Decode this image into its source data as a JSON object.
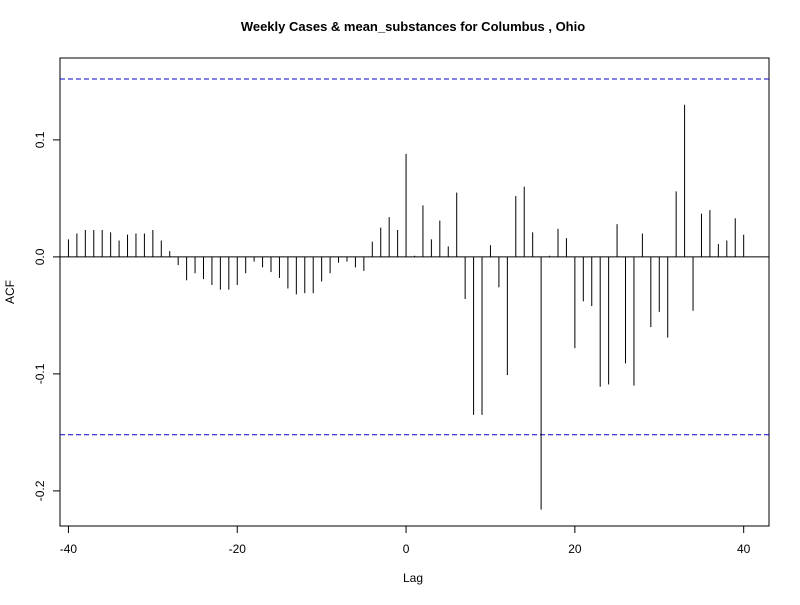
{
  "chart_data": {
    "type": "bar",
    "title": "Weekly Cases & mean_substances for Columbus , Ohio",
    "xlabel": "Lag",
    "ylabel": "ACF",
    "xlim": [
      -41,
      43
    ],
    "ylim": [
      -0.23,
      0.17
    ],
    "x_ticks": [
      {
        "value": -40,
        "label": "-40"
      },
      {
        "value": -20,
        "label": "-20"
      },
      {
        "value": 0,
        "label": "0"
      },
      {
        "value": 20,
        "label": "20"
      },
      {
        "value": 40,
        "label": "40"
      }
    ],
    "y_ticks": [
      {
        "value": -0.2,
        "label": "-0.2"
      },
      {
        "value": -0.1,
        "label": "-0.1"
      },
      {
        "value": 0.0,
        "label": "0.0"
      },
      {
        "value": 0.1,
        "label": "0.1"
      }
    ],
    "confidence_bound": 0.152,
    "bound_color": "#0000cc",
    "series": [
      {
        "x": [
          -40,
          -39,
          -38,
          -37,
          -36,
          -35,
          -34,
          -33,
          -32,
          -31,
          -30,
          -29,
          -28,
          -27,
          -26,
          -25,
          -24,
          -23,
          -22,
          -21,
          -20,
          -19,
          -18,
          -17,
          -16,
          -15,
          -14,
          -13,
          -12,
          -11,
          -10,
          -9,
          -8,
          -7,
          -6,
          -5,
          -4,
          -3,
          -2,
          -1,
          0,
          1,
          2,
          3,
          4,
          5,
          6,
          7,
          8,
          9,
          10,
          11,
          12,
          13,
          14,
          15,
          16,
          17,
          18,
          19,
          20,
          21,
          22,
          23,
          24,
          25,
          26,
          27,
          28,
          29,
          30,
          31,
          32,
          33,
          34,
          35,
          36,
          37,
          38,
          39,
          40
        ],
        "values": [
          0.015,
          0.02,
          0.023,
          0.023,
          0.023,
          0.021,
          0.014,
          0.019,
          0.02,
          0.02,
          0.023,
          0.014,
          0.005,
          -0.007,
          -0.02,
          -0.014,
          -0.019,
          -0.024,
          -0.028,
          -0.028,
          -0.024,
          -0.014,
          -0.004,
          -0.009,
          -0.013,
          -0.018,
          -0.027,
          -0.032,
          -0.031,
          -0.031,
          -0.021,
          -0.014,
          -0.005,
          -0.004,
          -0.009,
          -0.012,
          0.013,
          0.025,
          0.034,
          0.023,
          0.088,
          0.001,
          0.044,
          0.015,
          0.031,
          0.009,
          0.055,
          -0.036,
          -0.135,
          -0.135,
          0.01,
          -0.026,
          -0.101,
          0.052,
          0.06,
          0.021,
          -0.216,
          0.001,
          0.024,
          0.016,
          -0.078,
          -0.038,
          -0.042,
          -0.111,
          -0.109,
          0.028,
          -0.091,
          -0.11,
          0.02,
          -0.06,
          -0.047,
          -0.069,
          0.056,
          0.13,
          -0.046,
          0.037,
          0.04,
          0.011,
          0.014,
          0.033,
          0.019
        ]
      }
    ]
  }
}
